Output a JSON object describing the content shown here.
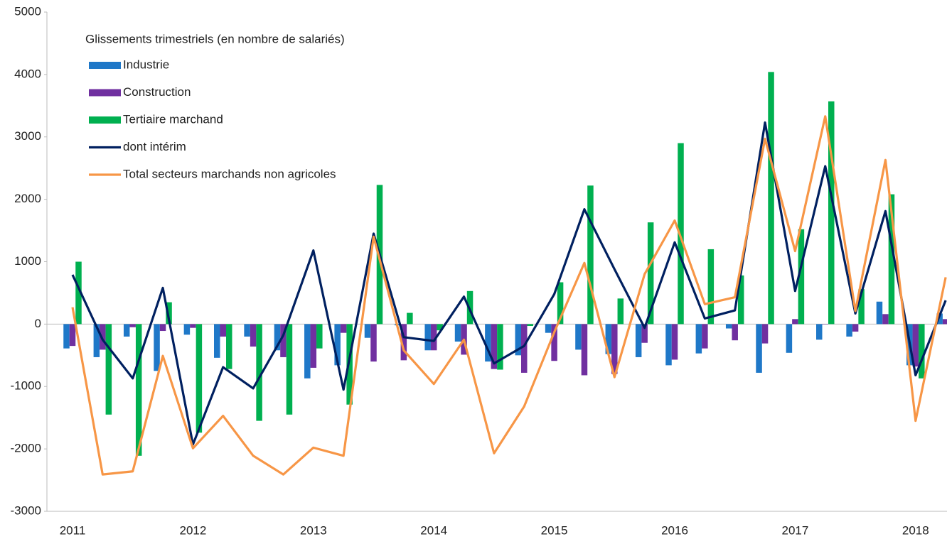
{
  "chart_data": {
    "type": "bar-line",
    "legend_title": "Glissements trimestriels (en nombre de salariés)",
    "categories": [
      "2011",
      null,
      null,
      null,
      "2012",
      null,
      null,
      null,
      "2013",
      null,
      null,
      null,
      "2014",
      null,
      null,
      null,
      "2015",
      null,
      null,
      null,
      "2016",
      null,
      null,
      null,
      "2017",
      null,
      null,
      null,
      "2018",
      null
    ],
    "series": [
      {
        "name": "Industrie",
        "kind": "bar",
        "color": "#1f78c8",
        "values": [
          -390,
          -530,
          -200,
          -750,
          -170,
          -540,
          -200,
          -420,
          -870,
          -660,
          -220,
          -20,
          -420,
          -280,
          -600,
          -500,
          -140,
          -410,
          -480,
          -530,
          -660,
          -470,
          -70,
          -780,
          -460,
          -250,
          -200,
          360,
          -660,
          170
        ]
      },
      {
        "name": "Construction",
        "kind": "bar",
        "color": "#7030a0",
        "values": [
          -350,
          -410,
          -50,
          -110,
          -60,
          -200,
          -360,
          -530,
          -700,
          -140,
          -600,
          -580,
          -420,
          -490,
          -720,
          -780,
          -590,
          -820,
          -800,
          -300,
          -570,
          -390,
          -260,
          -310,
          80,
          0,
          -120,
          160,
          -680,
          80
        ]
      },
      {
        "name": "Tertiaire marchand",
        "kind": "bar",
        "color": "#00b050",
        "values": [
          1000,
          -1450,
          -2110,
          350,
          -1740,
          -720,
          -1550,
          -1450,
          -390,
          -1290,
          2230,
          180,
          -100,
          530,
          -730,
          -30,
          670,
          2220,
          410,
          1630,
          2900,
          1200,
          780,
          4040,
          1520,
          3570,
          560,
          2080,
          -870,
          0
        ]
      },
      {
        "name": "dont intérim",
        "kind": "line",
        "color": "#002060",
        "values": [
          790,
          -250,
          -870,
          580,
          -1930,
          -690,
          -1030,
          -180,
          1180,
          -1050,
          1450,
          -210,
          -270,
          440,
          -630,
          -350,
          480,
          1840,
          880,
          -60,
          1310,
          90,
          220,
          3230,
          530,
          2530,
          170,
          1810,
          -820,
          380
        ]
      },
      {
        "name": "Total secteurs marchands non agricoles",
        "kind": "line",
        "color": "#f79646",
        "values": [
          270,
          -2410,
          -2360,
          -510,
          -1990,
          -1470,
          -2110,
          -2410,
          -1980,
          -2110,
          1400,
          -420,
          -960,
          -250,
          -2070,
          -1320,
          -130,
          980,
          -850,
          800,
          1660,
          320,
          430,
          2970,
          1170,
          3330,
          210,
          2630,
          -1550,
          750
        ]
      }
    ],
    "ylim": [
      -3000,
      5000
    ],
    "yticks": [
      -3000,
      -2000,
      -1000,
      0,
      1000,
      2000,
      3000,
      4000,
      5000
    ],
    "grid": false
  }
}
